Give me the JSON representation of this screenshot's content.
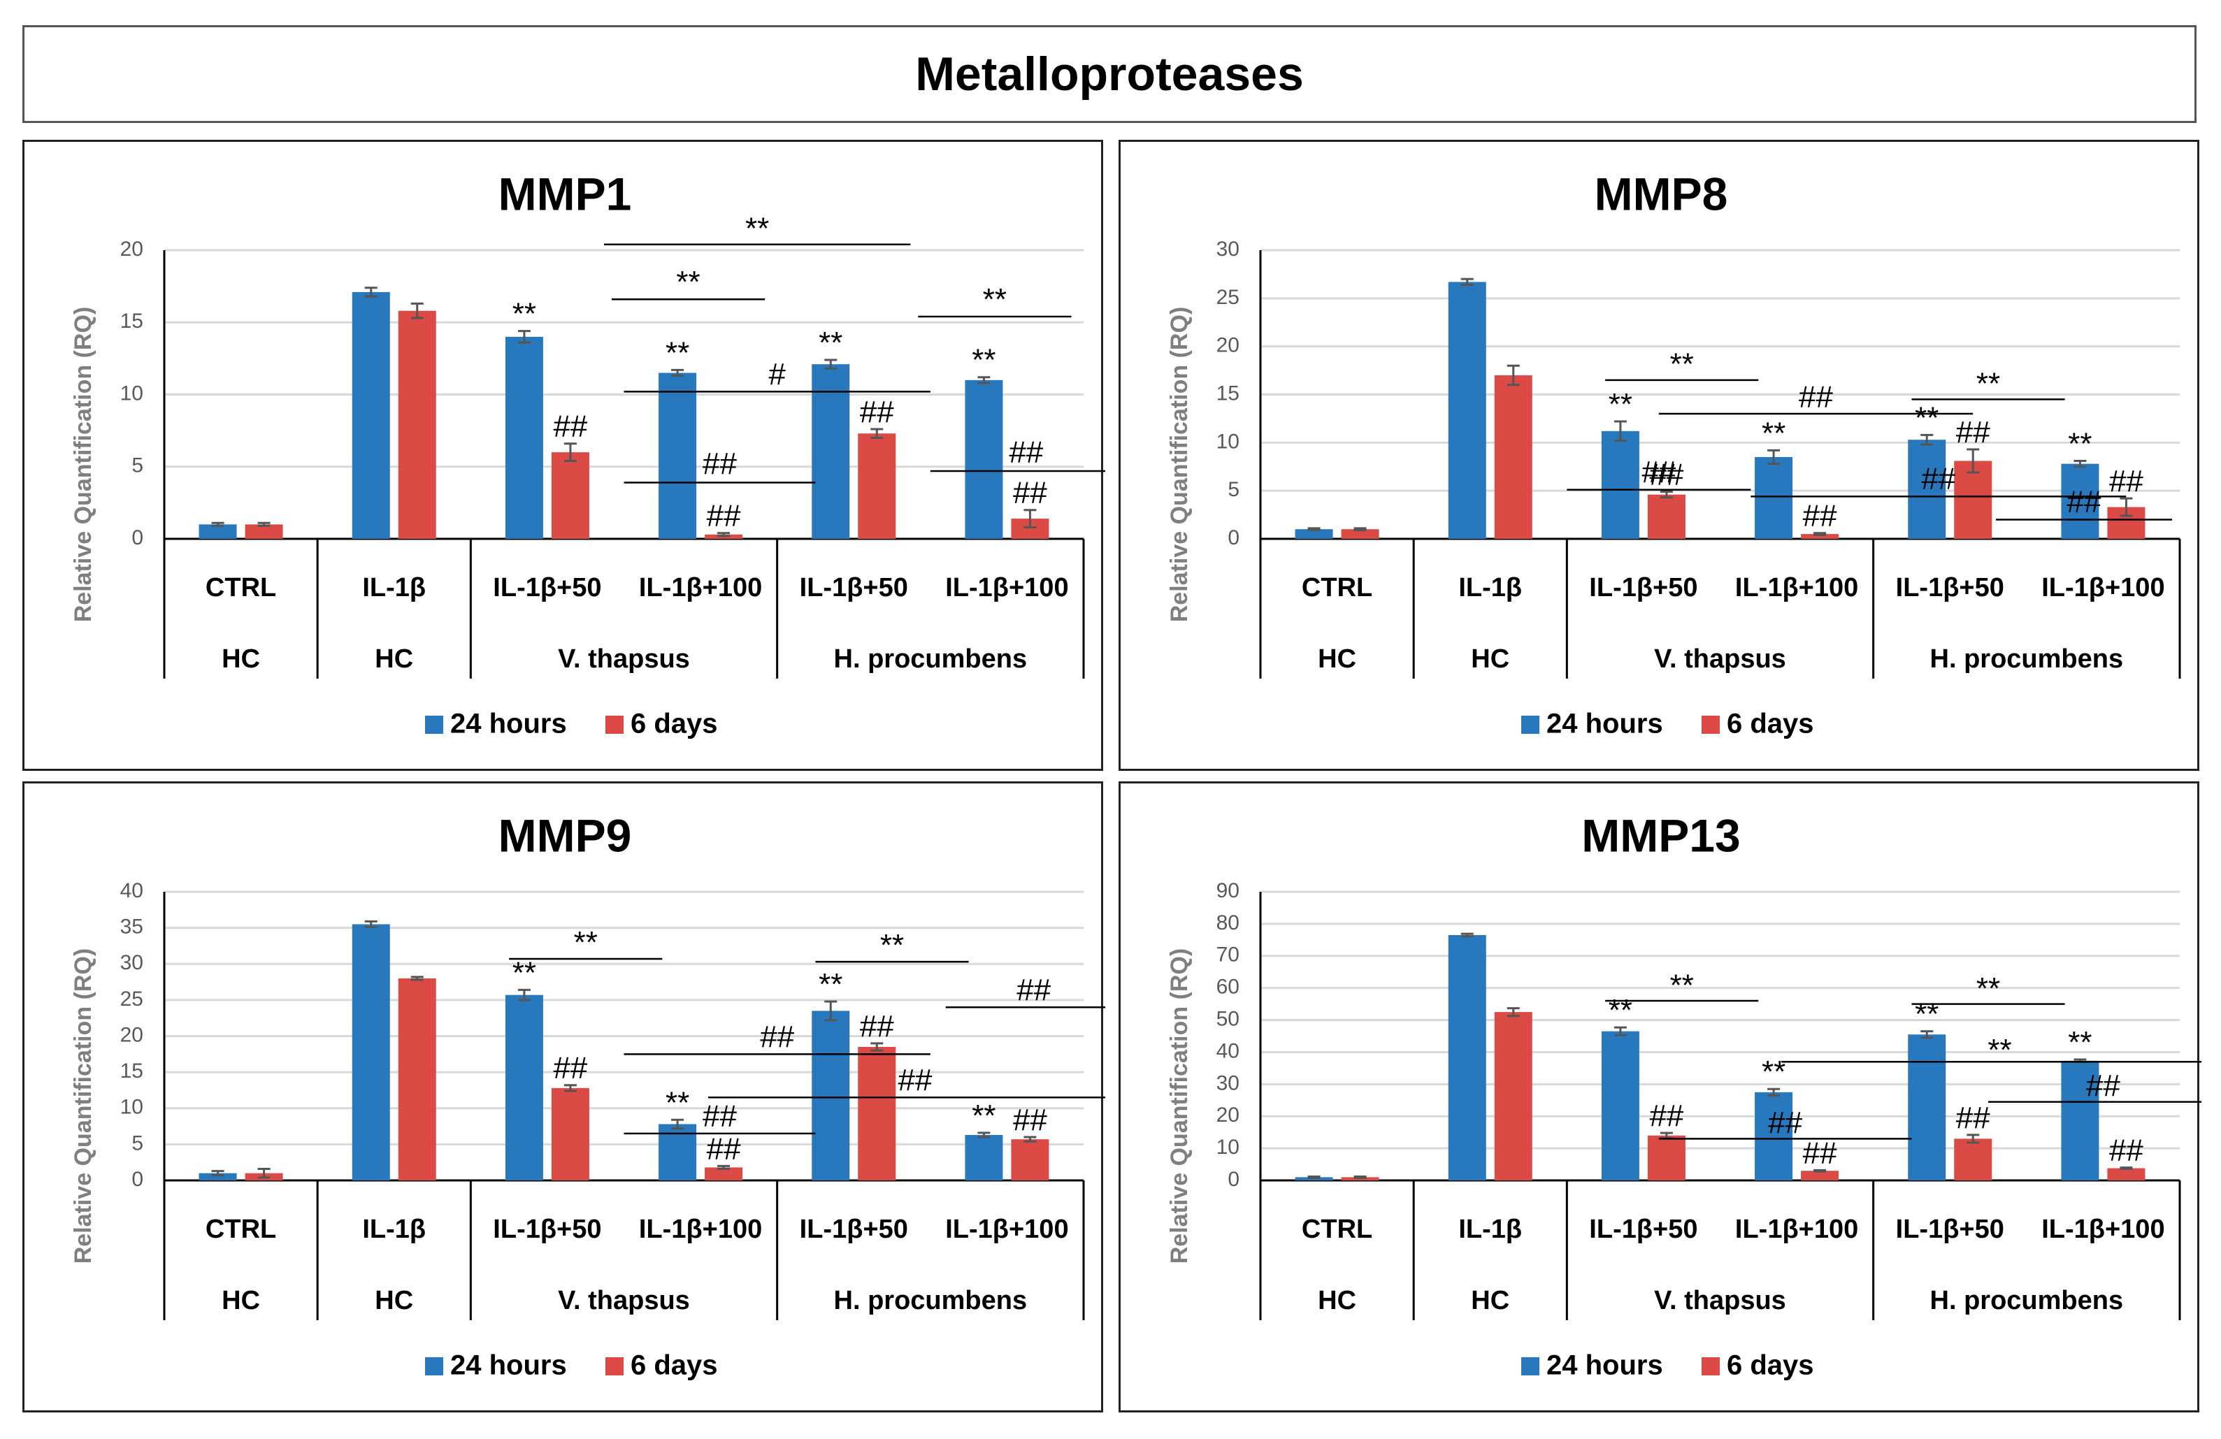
{
  "figure_title": "Metalloproteases",
  "colors": {
    "series_24h": "#2878BE",
    "series_6d": "#DC4A46",
    "grid": "#D9D9D9",
    "axis": "#000000"
  },
  "group_labels": [
    "HC",
    "HC",
    "V. thapsus",
    "H. procumbens"
  ],
  "chart_data": [
    {
      "type": "bar",
      "title": "MMP1",
      "ylabel": "Relative Quantification (RQ)",
      "ylim": [
        0,
        20
      ],
      "yticks": [
        "0",
        "5",
        "10",
        "15",
        "20"
      ],
      "categories": [
        "CTRL",
        "IL-1β",
        "IL-1β+50",
        "IL-1β+100",
        "IL-1β+50",
        "IL-1β+100"
      ],
      "groups": [
        "HC",
        "HC",
        "V. thapsus",
        "H. procumbens"
      ],
      "grid": true,
      "legend_position": "bottom-center",
      "series": [
        {
          "name": "24 hours",
          "values": [
            1.0,
            17.1,
            14.0,
            11.5,
            12.1,
            11.0
          ],
          "errors": [
            0.1,
            0.3,
            0.4,
            0.2,
            0.3,
            0.2
          ],
          "labels": [
            "",
            "",
            "**",
            "**",
            "**",
            "**"
          ]
        },
        {
          "name": "6 days",
          "values": [
            1.0,
            15.8,
            6.0,
            0.3,
            7.3,
            1.4
          ],
          "errors": [
            0.1,
            0.5,
            0.6,
            0.1,
            0.3,
            0.6
          ],
          "labels": [
            "",
            "",
            "##",
            "##",
            "##",
            "##"
          ]
        }
      ],
      "annotations": [
        {
          "text": "**",
          "x1": 2.87,
          "x2": 4.87,
          "y": 20.4,
          "ty": 20.6
        },
        {
          "text": "**",
          "x1": 2.92,
          "x2": 3.92,
          "y": 16.6,
          "ty": 16.9
        },
        {
          "text": "**",
          "x1": 4.92,
          "x2": 5.92,
          "y": 15.4,
          "ty": 15.7
        },
        {
          "text": "#",
          "x1": 3.0,
          "x2": 5.0,
          "y": 10.2,
          "ty": 10.5
        },
        {
          "text": "##",
          "x1": 3.0,
          "x2": 4.25,
          "y": 3.9,
          "ty": 4.3
        },
        {
          "text": "##",
          "x1": 5.0,
          "x2": 6.25,
          "y": 4.7,
          "ty": 5.1
        }
      ]
    },
    {
      "type": "bar",
      "title": "MMP8",
      "ylabel": "Relative Quantification (RQ)",
      "ylim": [
        0,
        30
      ],
      "yticks": [
        "0",
        "5",
        "10",
        "15",
        "20",
        "25",
        "30"
      ],
      "categories": [
        "CTRL",
        "IL-1β",
        "IL-1β+50",
        "IL-1β+100",
        "IL-1β+50",
        "IL-1β+100"
      ],
      "groups": [
        "HC",
        "HC",
        "V. thapsus",
        "H. procumbens"
      ],
      "grid": true,
      "legend_position": "bottom-center",
      "series": [
        {
          "name": "24 hours",
          "values": [
            1.0,
            26.7,
            11.2,
            8.5,
            10.3,
            7.8
          ],
          "errors": [
            0.1,
            0.3,
            1.0,
            0.7,
            0.5,
            0.3
          ],
          "labels": [
            "",
            "",
            "**",
            "**",
            "**",
            "**"
          ]
        },
        {
          "name": "6 days",
          "values": [
            1.0,
            17.0,
            4.6,
            0.5,
            8.1,
            3.3
          ],
          "errors": [
            0.1,
            1.0,
            0.3,
            0.1,
            1.2,
            0.9
          ],
          "labels": [
            "",
            "",
            "##",
            "##",
            "##",
            "##"
          ]
        }
      ],
      "annotations": [
        {
          "text": "**",
          "x1": 2.25,
          "x2": 3.25,
          "y": 16.5,
          "ty": 16.8
        },
        {
          "text": "**",
          "x1": 4.25,
          "x2": 5.25,
          "y": 14.5,
          "ty": 14.8
        },
        {
          "text": "##",
          "x1": 2.6,
          "x2": 4.65,
          "y": 13.0,
          "ty": 13.4
        },
        {
          "text": "##",
          "x1": 2.0,
          "x2": 3.2,
          "y": 5.1,
          "ty": 5.6
        },
        {
          "text": "##",
          "x1": 3.2,
          "x2": 5.65,
          "y": 4.4,
          "ty": 4.9
        },
        {
          "text": "##",
          "x1": 4.8,
          "x2": 5.95,
          "y": 2.0,
          "ty": 2.5
        }
      ]
    },
    {
      "type": "bar",
      "title": "MMP9",
      "ylabel": "Relative Quantification (RQ)",
      "ylim": [
        0,
        40
      ],
      "yticks": [
        "0",
        "5",
        "10",
        "15",
        "20",
        "25",
        "30",
        "35",
        "40"
      ],
      "categories": [
        "CTRL",
        "IL-1β",
        "IL-1β+50",
        "IL-1β+100",
        "IL-1β+50",
        "IL-1β+100"
      ],
      "groups": [
        "HC",
        "HC",
        "V. thapsus",
        "H. procumbens"
      ],
      "grid": true,
      "legend_position": "bottom-center",
      "series": [
        {
          "name": "24 hours",
          "values": [
            1.0,
            35.5,
            25.7,
            7.8,
            23.5,
            6.3
          ],
          "errors": [
            0.3,
            0.4,
            0.7,
            0.6,
            1.3,
            0.3
          ],
          "labels": [
            "",
            "",
            "**",
            "**",
            "**",
            "**"
          ]
        },
        {
          "name": "6 days",
          "values": [
            1.0,
            28.0,
            12.8,
            1.8,
            18.5,
            5.7
          ],
          "errors": [
            0.6,
            0.2,
            0.4,
            0.2,
            0.5,
            0.3
          ],
          "labels": [
            "",
            "",
            "##",
            "##",
            "##",
            "##"
          ]
        }
      ],
      "annotations": [
        {
          "text": "**",
          "x1": 2.25,
          "x2": 3.25,
          "y": 30.7,
          "ty": 31.2
        },
        {
          "text": "**",
          "x1": 4.25,
          "x2": 5.25,
          "y": 30.3,
          "ty": 30.8
        },
        {
          "text": "##",
          "x1": 5.1,
          "x2": 6.25,
          "y": 24.0,
          "ty": 24.6
        },
        {
          "text": "##",
          "x1": 3.0,
          "x2": 5.0,
          "y": 17.5,
          "ty": 18.1
        },
        {
          "text": "##",
          "x1": 3.55,
          "x2": 6.25,
          "y": 11.5,
          "ty": 12.1
        },
        {
          "text": "##",
          "x1": 3.0,
          "x2": 4.25,
          "y": 6.5,
          "ty": 7.1
        }
      ]
    },
    {
      "type": "bar",
      "title": "MMP13",
      "ylabel": "Relative Quantification (RQ)",
      "ylim": [
        0,
        90
      ],
      "yticks": [
        "0",
        "10",
        "20",
        "30",
        "40",
        "50",
        "60",
        "70",
        "80",
        "90"
      ],
      "categories": [
        "CTRL",
        "IL-1β",
        "IL-1β+50",
        "IL-1β+100",
        "IL-1β+50",
        "IL-1β+100"
      ],
      "groups": [
        "HC",
        "HC",
        "V. thapsus",
        "H. procumbens"
      ],
      "grid": true,
      "legend_position": "bottom-center",
      "series": [
        {
          "name": "24 hours",
          "values": [
            1.0,
            76.5,
            46.5,
            27.5,
            45.5,
            37.3
          ],
          "errors": [
            0.2,
            0.4,
            1.2,
            1.0,
            1.0,
            0.4
          ],
          "labels": [
            "",
            "",
            "**",
            "**",
            "**",
            "**"
          ]
        },
        {
          "name": "6 days",
          "values": [
            1.0,
            52.5,
            14.0,
            3.0,
            13.0,
            3.8
          ],
          "errors": [
            0.2,
            1.2,
            0.8,
            0.2,
            1.2,
            0.2
          ],
          "labels": [
            "",
            "",
            "##",
            "##",
            "##",
            "##"
          ]
        }
      ],
      "annotations": [
        {
          "text": "**",
          "x1": 2.25,
          "x2": 3.25,
          "y": 56.0,
          "ty": 56.8
        },
        {
          "text": "**",
          "x1": 4.25,
          "x2": 5.25,
          "y": 55.0,
          "ty": 55.8
        },
        {
          "text": "**",
          "x1": 3.4,
          "x2": 6.25,
          "y": 37.0,
          "ty": 36.6
        },
        {
          "text": "##",
          "x1": 4.75,
          "x2": 6.25,
          "y": 24.5,
          "ty": 25.5
        },
        {
          "text": "##",
          "x1": 2.6,
          "x2": 4.25,
          "y": 13.0,
          "ty": 14.0
        }
      ]
    }
  ]
}
